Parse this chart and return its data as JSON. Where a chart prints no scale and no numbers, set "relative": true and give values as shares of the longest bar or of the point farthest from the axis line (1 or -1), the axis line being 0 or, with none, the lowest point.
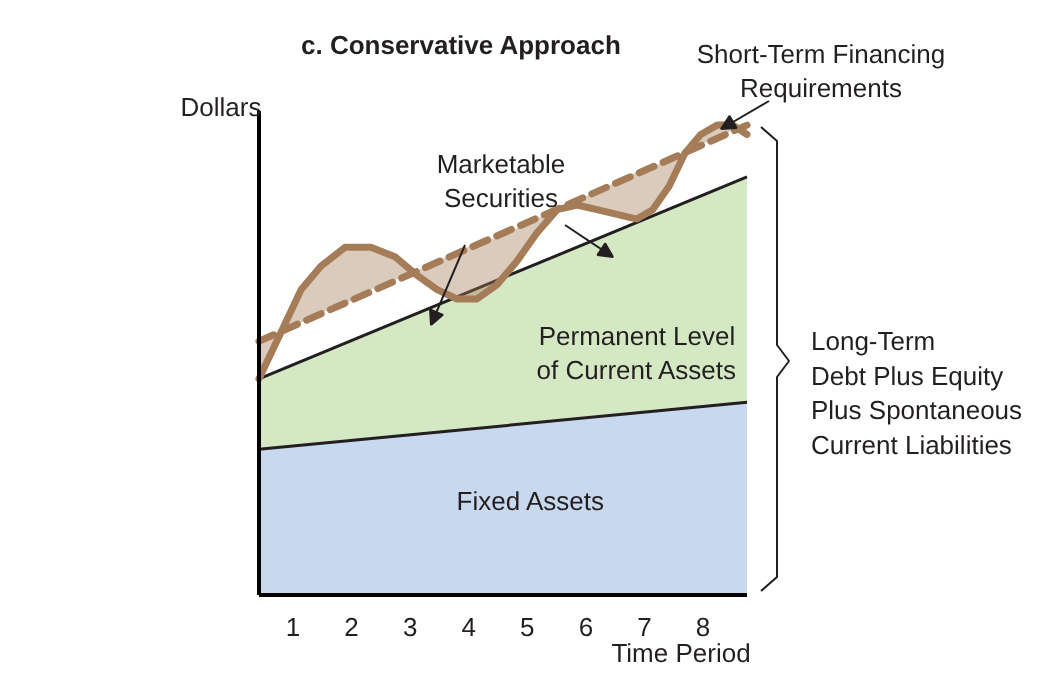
{
  "chart_data": {
    "type": "area",
    "title": "c. Conservative Approach",
    "ylabel": "Dollars",
    "xlabel": "Time Period",
    "relative": true,
    "tick_labels": "x",
    "grid": false,
    "xlim": [
      0.42,
      8.75
    ],
    "xticks": [
      1,
      2,
      3,
      4,
      5,
      6,
      7,
      8
    ],
    "annotations": [
      "Marketable\nSecurities",
      "Short-Term Financing\nRequirements",
      "Long-Term\nDebt Plus Equity\nPlus Spontaneous\nCurrent Liabilities"
    ],
    "series": [
      {
        "name": "Permanent Level\nof Current Assets",
        "color": "#d5e8c4",
        "x": [
          0.42,
          8.75
        ],
        "values": [
          0.46,
          0.89
        ]
      },
      {
        "name": "Fixed Assets",
        "color": "#c8d8ee",
        "x": [
          0.42,
          8.75
        ],
        "values": [
          0.31,
          0.41
        ]
      },
      {
        "type": "line",
        "line_style": "dashed",
        "color": "#a57c58",
        "x": [
          0.42,
          8.75
        ],
        "values": [
          0.54,
          1.0
        ]
      },
      {
        "type": "line",
        "line_style": "solid",
        "color": "#a57c58",
        "x": [
          0.42,
          0.8,
          1.14,
          1.48,
          1.89,
          2.33,
          2.74,
          3.12,
          3.46,
          3.8,
          4.14,
          4.48,
          4.82,
          5.16,
          5.51,
          5.85,
          6.19,
          6.53,
          6.87,
          7.14,
          7.42,
          7.69,
          7.96,
          8.24,
          8.51,
          8.75
        ],
        "values": [
          0.46,
          0.56,
          0.65,
          0.7,
          0.74,
          0.74,
          0.72,
          0.68,
          0.65,
          0.63,
          0.63,
          0.66,
          0.71,
          0.77,
          0.82,
          0.83,
          0.82,
          0.81,
          0.8,
          0.82,
          0.87,
          0.94,
          0.98,
          1.0,
          1.0,
          0.98
        ],
        "lower": [
          0.54,
          0.56,
          0.58,
          0.6,
          0.62,
          0.65,
          0.67,
          0.69,
          0.71,
          0.73,
          0.75,
          0.76,
          0.78,
          0.8,
          0.82,
          0.84,
          0.86,
          0.88,
          0.9,
          0.91,
          0.93,
          0.94,
          0.96,
          0.97,
          0.99,
          1.0
        ],
        "upper": [
          0.46,
          0.56,
          0.65,
          0.7,
          0.74,
          0.74,
          0.72,
          0.68,
          0.65,
          0.63,
          0.63,
          0.66,
          0.71,
          0.77,
          0.82,
          0.83,
          0.82,
          0.81,
          0.8,
          0.82,
          0.87,
          0.94,
          0.98,
          1.0,
          1.0,
          0.98
        ]
      }
    ]
  }
}
